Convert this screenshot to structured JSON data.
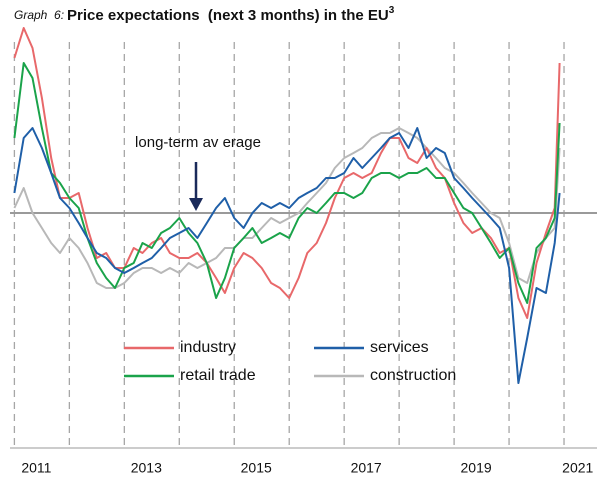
{
  "chart_data": {
    "type": "line",
    "title_prefix": "Graph  6:",
    "title": "Price expectations  (next 3 months) in the EU",
    "title_superscript": "3",
    "annotation": "long-term av erage",
    "average": 0,
    "xlim": [
      2010.92,
      2021.6
    ],
    "xgrid": [
      2011,
      2012,
      2013,
      2014,
      2015,
      2016,
      2017,
      2018,
      2019,
      2020,
      2021
    ],
    "xticks": [
      {
        "value": 2011.4,
        "label": "2011"
      },
      {
        "value": 2013.4,
        "label": "2013"
      },
      {
        "value": 2015.4,
        "label": "2015"
      },
      {
        "value": 2017.4,
        "label": "2017"
      },
      {
        "value": 2019.4,
        "label": "2019"
      },
      {
        "value": 2021.25,
        "label": "2021"
      }
    ],
    "ylim": [
      -47,
      37
    ],
    "x": [
      2011,
      2011.17,
      2011.33,
      2011.5,
      2011.67,
      2011.83,
      2012,
      2012.17,
      2012.33,
      2012.5,
      2012.67,
      2012.83,
      2013,
      2013.17,
      2013.33,
      2013.5,
      2013.67,
      2013.83,
      2014,
      2014.17,
      2014.33,
      2014.5,
      2014.67,
      2014.83,
      2015,
      2015.17,
      2015.33,
      2015.5,
      2015.67,
      2015.83,
      2016,
      2016.17,
      2016.33,
      2016.5,
      2016.67,
      2016.83,
      2017,
      2017.17,
      2017.33,
      2017.5,
      2017.67,
      2017.83,
      2018,
      2018.17,
      2018.33,
      2018.5,
      2018.67,
      2018.83,
      2019,
      2019.17,
      2019.33,
      2019.5,
      2019.67,
      2019.83,
      2020,
      2020.17,
      2020.33,
      2020.5,
      2020.67,
      2020.83,
      2020.92
    ],
    "series": [
      {
        "name": "industry",
        "color": "#e8686a",
        "values": [
          31,
          37,
          33,
          23,
          11,
          3,
          3,
          4,
          -3,
          -9,
          -8,
          -11,
          -11,
          -7,
          -8,
          -6,
          -5,
          -8,
          -9,
          -9,
          -8,
          -10,
          -13,
          -16,
          -11,
          -8,
          -9,
          -11,
          -14,
          -15,
          -17,
          -13,
          -8,
          -6,
          -2,
          3,
          7,
          8,
          7,
          8,
          12,
          15,
          15,
          11,
          10,
          13,
          9,
          7,
          2,
          -2,
          -4,
          -3,
          -5,
          -8,
          -7,
          -17,
          -21,
          -10,
          -4,
          1,
          30
        ]
      },
      {
        "name": "services",
        "color": "#1f5fa8",
        "values": [
          4,
          15,
          17,
          13,
          8,
          3,
          1,
          -2,
          -5,
          -8,
          -9,
          -11,
          -12,
          -11,
          -10,
          -9,
          -7,
          -5,
          -4,
          -3,
          -5,
          -2,
          1,
          3,
          -1,
          -3,
          0,
          2,
          1,
          2,
          1,
          3,
          4,
          5,
          7,
          7,
          8,
          11,
          9,
          11,
          13,
          15,
          16,
          13,
          17,
          11,
          13,
          12,
          7,
          5,
          3,
          1,
          -1,
          -3,
          -11,
          -34,
          -25,
          -15,
          -16,
          -6,
          4
        ]
      },
      {
        "name": "retail trade",
        "color": "#1aa34a",
        "values": [
          15,
          30,
          27,
          17,
          8,
          6,
          3,
          1,
          -5,
          -10,
          -13,
          -15,
          -11,
          -10,
          -6,
          -7,
          -4,
          -3,
          -1,
          -4,
          -6,
          -10,
          -17,
          -13,
          -7,
          -5,
          -3,
          -6,
          -5,
          -4,
          -5,
          -1,
          1,
          0,
          2,
          4,
          4,
          3,
          4,
          7,
          8,
          8,
          7,
          8,
          8,
          9,
          7,
          7,
          4,
          1,
          0,
          -3,
          -6,
          -9,
          -7,
          -14,
          -18,
          -7,
          -5,
          -1,
          18
        ]
      },
      {
        "name": "construction",
        "color": "#b8b8b8",
        "values": [
          1,
          5,
          0,
          -3,
          -6,
          -8,
          -5,
          -7,
          -10,
          -14,
          -15,
          -15,
          -14,
          -12,
          -11,
          -11,
          -12,
          -11,
          -12,
          -10,
          -11,
          -10,
          -9,
          -7,
          -7,
          -5,
          -5,
          -3,
          -1,
          -2,
          -1,
          0,
          2,
          4,
          6,
          9,
          11,
          12,
          13,
          15,
          16,
          16,
          17,
          16,
          15,
          13,
          11,
          9,
          8,
          6,
          4,
          2,
          0,
          -1,
          -6,
          -13,
          -14,
          -8,
          -5,
          -3,
          13
        ]
      }
    ]
  }
}
